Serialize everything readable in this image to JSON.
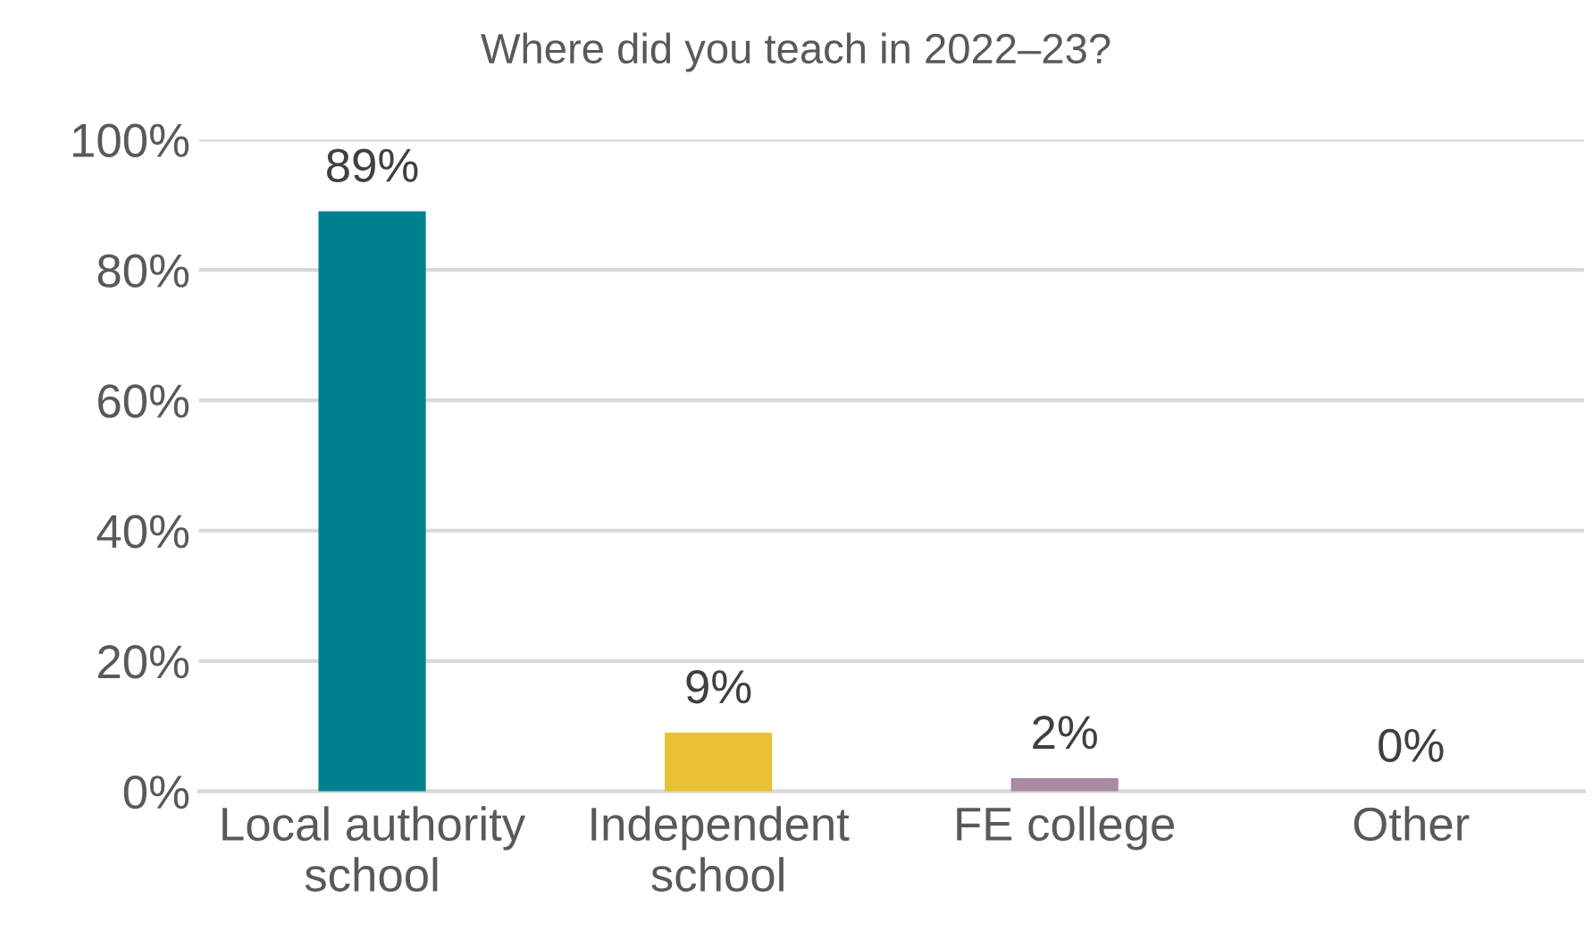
{
  "chart_data": {
    "type": "bar",
    "title": "Where did you teach in 2022–23?",
    "categories": [
      "Local authority school",
      "Independent school",
      "FE college",
      "Other"
    ],
    "values": [
      89,
      9,
      2,
      0
    ],
    "colors": [
      "#00808f",
      "#e8c234",
      "#a88aa3",
      "#4a74b0"
    ],
    "value_labels": [
      "89%",
      "9%",
      "2%",
      "0%"
    ],
    "ylim": [
      0,
      100
    ],
    "yticks": [
      {
        "value": 0,
        "label": "0%"
      },
      {
        "value": 20,
        "label": "20%"
      },
      {
        "value": 40,
        "label": "40%"
      },
      {
        "value": 60,
        "label": "60%"
      },
      {
        "value": 80,
        "label": "80%"
      },
      {
        "value": 100,
        "label": "100%"
      }
    ],
    "grid": "y"
  }
}
